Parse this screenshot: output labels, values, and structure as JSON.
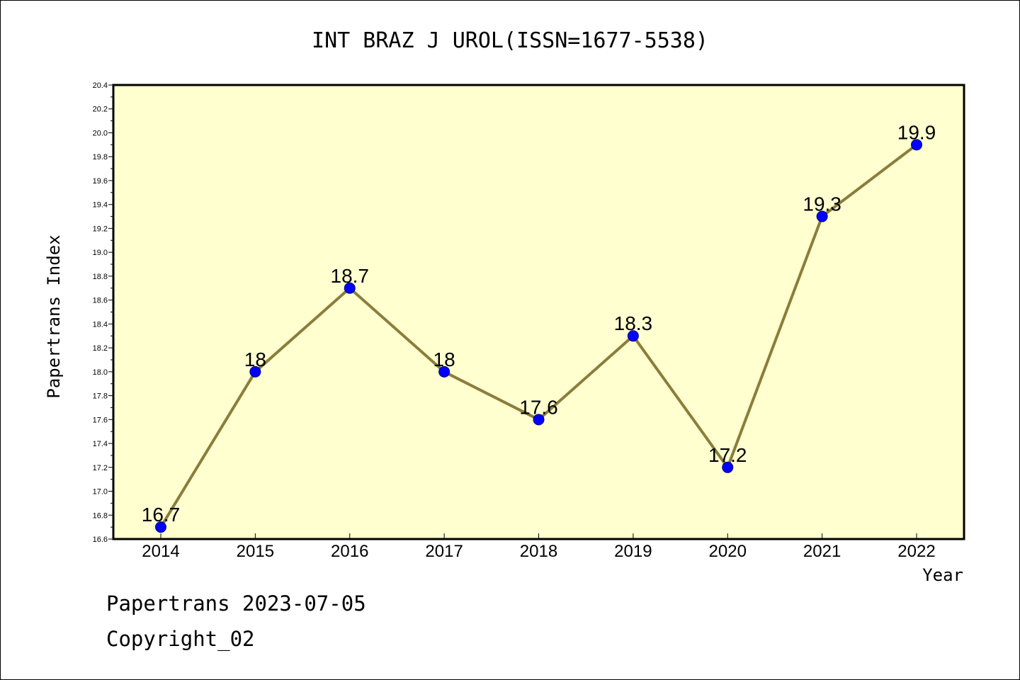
{
  "chart_data": {
    "type": "line",
    "title": "INT BRAZ J UROL(ISSN=1677-5538)",
    "xlabel": "Year",
    "ylabel": "Papertrans Index",
    "categories": [
      "2014",
      "2015",
      "2016",
      "2017",
      "2018",
      "2019",
      "2020",
      "2021",
      "2022"
    ],
    "values": [
      16.7,
      18.0,
      18.7,
      18.0,
      17.6,
      18.3,
      17.2,
      19.3,
      19.9
    ],
    "data_labels": [
      "16.7",
      "18",
      "18.7",
      "18",
      "17.6",
      "18.3",
      "17.2",
      "19.3",
      "19.9"
    ],
    "ylim": [
      16.6,
      20.4
    ],
    "yticks": [
      "16.6",
      "16.8",
      "17.0",
      "17.2",
      "17.4",
      "17.6",
      "17.8",
      "18.0",
      "18.2",
      "18.4",
      "18.6",
      "18.8",
      "19.0",
      "19.2",
      "19.4",
      "19.6",
      "19.8",
      "20.0",
      "20.2",
      "20.4"
    ],
    "grid": false,
    "colors": {
      "plot_background": "#ffffd0",
      "line": "#8b7d3a",
      "marker_fill": "#0000ff",
      "marker_stroke": "#000080"
    }
  },
  "footer": {
    "line1": "Papertrans 2023-07-05",
    "line2": "Copyright_02"
  }
}
